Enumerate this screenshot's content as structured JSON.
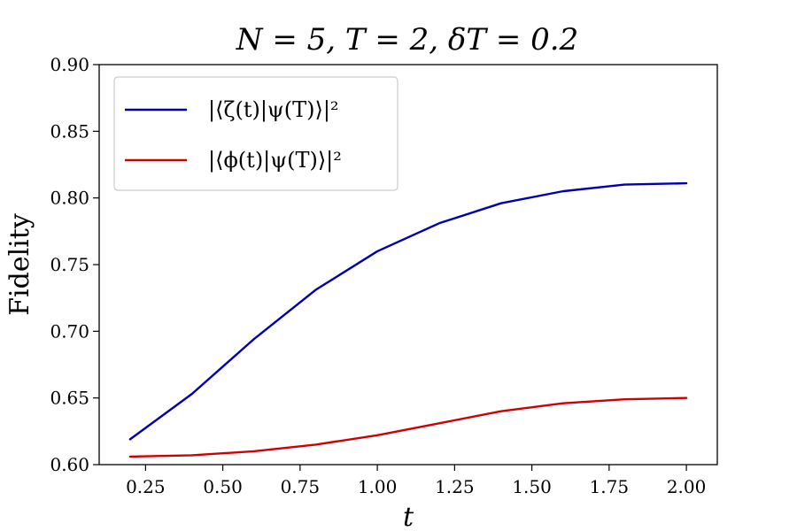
{
  "chart_data": {
    "type": "line",
    "title": "N = 5, T = 2, δT = 0.2",
    "xlabel": "t",
    "ylabel": "Fidelity",
    "xlim": [
      0.1,
      2.1
    ],
    "ylim": [
      0.6,
      0.9
    ],
    "xticks": [
      "0.25",
      "0.50",
      "0.75",
      "1.00",
      "1.25",
      "1.50",
      "1.75",
      "2.00"
    ],
    "yticks": [
      "0.60",
      "0.65",
      "0.70",
      "0.75",
      "0.80",
      "0.85",
      "0.90"
    ],
    "grid": false,
    "legend_position": "top-left",
    "x": [
      0.2,
      0.4,
      0.6,
      0.8,
      1.0,
      1.2,
      1.4,
      1.6,
      1.8,
      2.0
    ],
    "series": [
      {
        "name": "|⟨ζ(t)|ψ(T)⟩|²",
        "color": "#0000b0",
        "values": [
          0.619,
          0.653,
          0.694,
          0.731,
          0.76,
          0.781,
          0.796,
          0.805,
          0.81,
          0.811
        ]
      },
      {
        "name": "|⟨ϕ(t)|ψ(T)⟩|²",
        "color": "#d00000",
        "values": [
          0.606,
          0.607,
          0.61,
          0.615,
          0.622,
          0.631,
          0.64,
          0.646,
          0.649,
          0.65
        ]
      }
    ]
  }
}
